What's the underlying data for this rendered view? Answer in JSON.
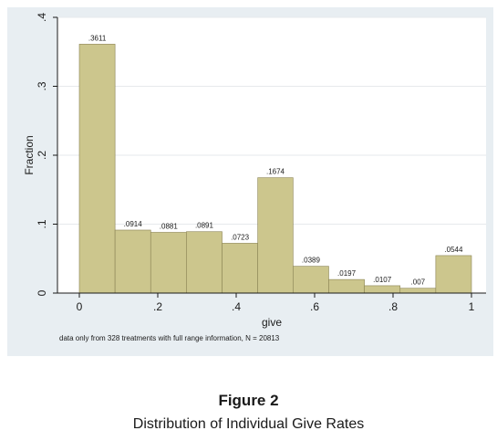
{
  "caption": {
    "label": "Figure 2",
    "title": "Distribution of Individual Give Rates"
  },
  "colors": {
    "bar_fill": "#ccc68d",
    "bar_stroke": "#8b8454",
    "panel_background": "#e8eef2",
    "plot_background": "#ffffff"
  },
  "chart_data": {
    "type": "bar",
    "title": "",
    "xlabel": "give",
    "ylabel": "Fraction",
    "note": "data only from 328 treatments with full range information, N = 20813",
    "xlim": [
      0,
      1
    ],
    "ylim": [
      0,
      0.4
    ],
    "x_ticks": [
      0,
      0.2,
      0.4,
      0.6,
      0.8,
      1
    ],
    "x_tick_labels": [
      "0",
      ".2",
      ".4",
      ".6",
      ".8",
      "1"
    ],
    "y_ticks": [
      0,
      0.1,
      0.2,
      0.3,
      0.4
    ],
    "y_tick_labels": [
      "0",
      ".1",
      ".2",
      ".3",
      ".4"
    ],
    "bin_edges": [
      0,
      0.091,
      0.182,
      0.273,
      0.364,
      0.455,
      0.545,
      0.636,
      0.727,
      0.818,
      0.909,
      1
    ],
    "values": [
      0.3611,
      0.0914,
      0.0881,
      0.0891,
      0.0723,
      0.1674,
      0.0389,
      0.0197,
      0.0107,
      0.007,
      0.0544
    ],
    "value_labels": [
      ".3611",
      ".0914",
      ".0881",
      ".0891",
      ".0723",
      ".1674",
      ".0389",
      ".0197",
      ".0107",
      ".007",
      ".0544"
    ],
    "grid": "horizontal"
  }
}
